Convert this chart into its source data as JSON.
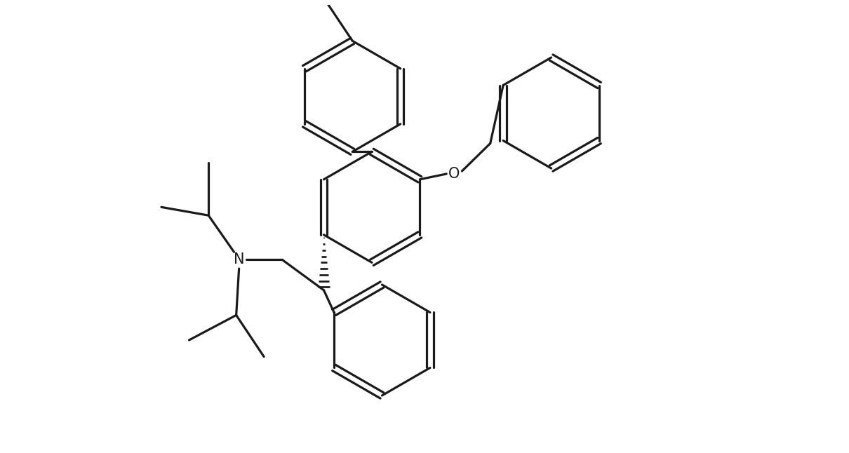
{
  "background_color": "#ffffff",
  "line_color": "#1a1a1a",
  "line_width": 2.3,
  "figsize": [
    12.1,
    6.46
  ],
  "dpi": 100
}
